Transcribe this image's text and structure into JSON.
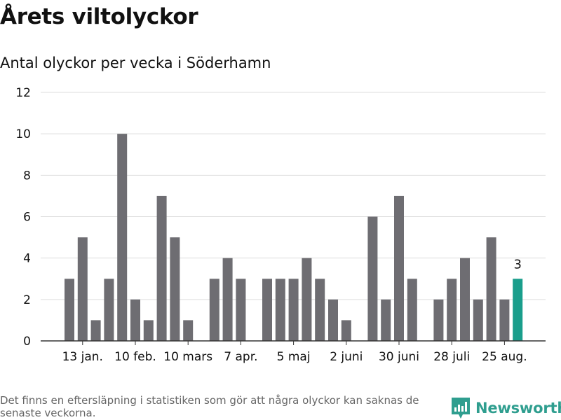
{
  "title": "Årets viltolyckor",
  "subtitle": "Antal olyckor per vecka i Söderhamn",
  "footnote": "Det finns en eftersläpning i statistiken som gör att några olyckor kan saknas de senaste veckorna.",
  "brand": {
    "name": "Newsworthy",
    "icon": "newsworthy-logo-icon",
    "color": "#2f9e8f"
  },
  "colors": {
    "bar": "#6e6d72",
    "highlight": "#1a9e8c",
    "grid": "#dddddd",
    "axis": "#333333"
  },
  "chart_data": {
    "type": "bar",
    "title": "Antal olyckor per vecka i Söderhamn",
    "xlabel": "",
    "ylabel": "",
    "ylim": [
      0,
      12
    ],
    "yticks": [
      0,
      2,
      4,
      6,
      8,
      10,
      12
    ],
    "grid": true,
    "values": [
      3,
      5,
      1,
      3,
      10,
      2,
      1,
      7,
      5,
      1,
      null,
      3,
      4,
      3,
      null,
      3,
      3,
      3,
      4,
      3,
      2,
      1,
      null,
      6,
      2,
      7,
      3,
      null,
      2,
      3,
      4,
      2,
      5,
      2,
      3
    ],
    "xticks": [
      {
        "index": 1,
        "label": "13 jan."
      },
      {
        "index": 5,
        "label": "10 feb."
      },
      {
        "index": 9,
        "label": "10 mars"
      },
      {
        "index": 13,
        "label": "7 apr."
      },
      {
        "index": 17,
        "label": "5 maj"
      },
      {
        "index": 21,
        "label": "2 juni"
      },
      {
        "index": 25,
        "label": "30 juni"
      },
      {
        "index": 29,
        "label": "28 juli"
      },
      {
        "index": 33,
        "label": "25 aug."
      }
    ],
    "highlight": {
      "index": 34,
      "label": "3"
    }
  }
}
